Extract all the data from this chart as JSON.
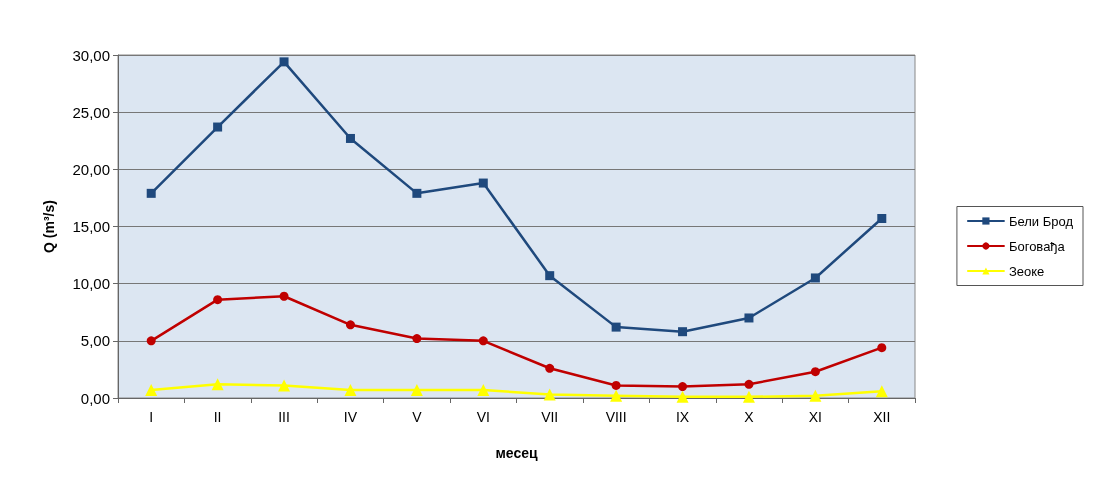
{
  "chart_data": {
    "type": "line",
    "xlabel": "месец",
    "ylabel": "Q (m³/s)",
    "categories": [
      "I",
      "II",
      "III",
      "IV",
      "V",
      "VI",
      "VII",
      "VIII",
      "IX",
      "X",
      "XI",
      "XII"
    ],
    "series": [
      {
        "name": "Бели Брод",
        "color": "#1f497d",
        "marker": "square",
        "values": [
          17.9,
          23.7,
          29.4,
          22.7,
          17.9,
          18.8,
          10.7,
          6.2,
          5.8,
          7.0,
          10.5,
          15.7
        ]
      },
      {
        "name": "Боговађа",
        "color": "#c00000",
        "marker": "circle",
        "values": [
          5.0,
          8.6,
          8.9,
          6.4,
          5.2,
          5.0,
          2.6,
          1.1,
          1.0,
          1.2,
          2.3,
          4.4
        ]
      },
      {
        "name": "Зеоке",
        "color": "#ffff00",
        "marker": "triangle",
        "values": [
          0.7,
          1.2,
          1.1,
          0.7,
          0.7,
          0.7,
          0.3,
          0.2,
          0.1,
          0.1,
          0.2,
          0.6
        ]
      }
    ],
    "ylim": [
      0,
      30
    ],
    "yticks": [
      {
        "value": 0,
        "label": "0,00"
      },
      {
        "value": 5,
        "label": "5,00"
      },
      {
        "value": 10,
        "label": "10,00"
      },
      {
        "value": 15,
        "label": "15,00"
      },
      {
        "value": 20,
        "label": "20,00"
      },
      {
        "value": 25,
        "label": "25,00"
      },
      {
        "value": 30,
        "label": "30,00"
      }
    ],
    "grid": "y",
    "legend": "right",
    "line_style": "solid"
  }
}
